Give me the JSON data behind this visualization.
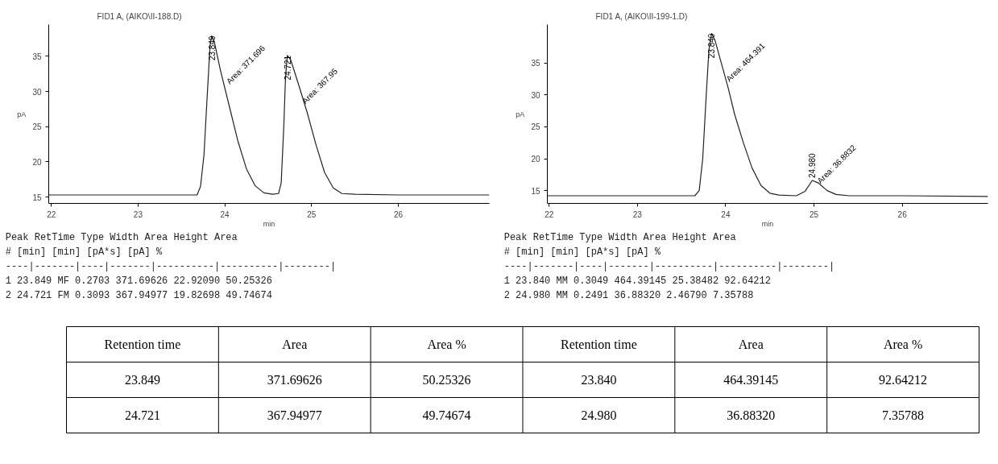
{
  "chart_data": [
    {
      "type": "line",
      "title": "FID1 A,  (AIKO\\II-188.D)",
      "xlabel": "min",
      "ylabel": "pA",
      "x": [
        21.97,
        23.0,
        23.68,
        23.72,
        23.76,
        23.8,
        23.83,
        23.849,
        23.88,
        23.95,
        24.05,
        24.15,
        24.25,
        24.35,
        24.45,
        24.55,
        24.62,
        24.65,
        24.68,
        24.7,
        24.721,
        24.76,
        24.85,
        24.95,
        25.05,
        25.15,
        25.25,
        25.35,
        25.5,
        26.0,
        27.05
      ],
      "series": [
        {
          "color": "#222222",
          "values": [
            15.3,
            15.3,
            15.3,
            16.5,
            21,
            30,
            36.5,
            37.9,
            37,
            33,
            28,
            23,
            19,
            16.6,
            15.6,
            15.4,
            15.5,
            17,
            25,
            32,
            35.1,
            34.5,
            31,
            27,
            22.5,
            18.5,
            16.3,
            15.5,
            15.4,
            15.3,
            15.3
          ]
        }
      ],
      "xlim": [
        21.97,
        27.05
      ],
      "ylim": [
        14.1,
        39.5
      ],
      "xticks": [
        22,
        23,
        24,
        25,
        26
      ],
      "yticks": [
        15,
        20,
        25,
        30,
        35
      ],
      "annotations": [
        {
          "text": "23.849",
          "x": 23.849,
          "y": 37.9
        },
        {
          "text": "Area: 371.696",
          "x": 23.849,
          "y": 37.9
        },
        {
          "text": "24.721",
          "x": 24.721,
          "y": 35.1
        },
        {
          "text": "Area: 367.95",
          "x": 24.721,
          "y": 35.1
        },
        "Peak RetTime Type  Width     Area      Height     Area",
        "  #   [min]        [min]   [pA*s]      [pA]        %",
        "----|-------|----|-------|----------|----------|--------|",
        "   1  23.849 MF    0.2703  371.69626   22.92090 50.25326",
        "   2  24.721 FM    0.3093  367.94977   19.82698 49.74674"
      ]
    },
    {
      "type": "line",
      "title": "FID1 A,  (AIKO\\II-199-1.D)",
      "xlabel": "min",
      "ylabel": "pA",
      "x": [
        21.98,
        23.0,
        23.65,
        23.7,
        23.74,
        23.78,
        23.81,
        23.84,
        23.88,
        23.95,
        24.03,
        24.1,
        24.2,
        24.3,
        24.4,
        24.5,
        24.6,
        24.8,
        24.9,
        24.98,
        25.05,
        25.15,
        25.25,
        25.4,
        26.0,
        26.97
      ],
      "series": [
        {
          "color": "#222222",
          "values": [
            14.2,
            14.2,
            14.2,
            15,
            20,
            30,
            37,
            39.6,
            38.5,
            35,
            31,
            27,
            22.5,
            18.5,
            15.8,
            14.6,
            14.3,
            14.2,
            14.9,
            16.6,
            16.2,
            15,
            14.4,
            14.2,
            14.2,
            14.1
          ]
        }
      ],
      "xlim": [
        21.98,
        26.97
      ],
      "ylim": [
        13.0,
        41.0
      ],
      "xticks": [
        22,
        23,
        24,
        25,
        26
      ],
      "yticks": [
        15,
        20,
        25,
        30,
        35
      ],
      "annotations": [
        {
          "text": "23.840",
          "x": 23.84,
          "y": 39.6
        },
        {
          "text": "Area: 464.391",
          "x": 23.84,
          "y": 39.6
        },
        {
          "text": "24.980",
          "x": 24.98,
          "y": 16.6
        },
        {
          "text": "Area: 36.8832",
          "x": 24.98,
          "y": 16.6
        },
        "Peak RetTime Type  Width     Area      Height     Area",
        "  #   [min]        [min]   [pA*s]      [pA]        %",
        "----|-------|----|-------|----------|----------|--------|",
        "   1  23.840 MM    0.3049  464.39145   25.38482 92.64212",
        "   2  24.980 MM    0.2491   36.88320    2.46790  7.35788"
      ]
    },
    {
      "type": "other",
      "annotations": [
        "Retention time",
        "Area",
        "Area %",
        "Retention time",
        "Area",
        "Area %",
        "23.849",
        "371.69626",
        "50.25326",
        "23.840",
        "464.39145",
        "92.64212",
        "24.721",
        "367.94977",
        "49.74674",
        "24.980",
        "36.88320",
        "7.35788"
      ]
    }
  ]
}
